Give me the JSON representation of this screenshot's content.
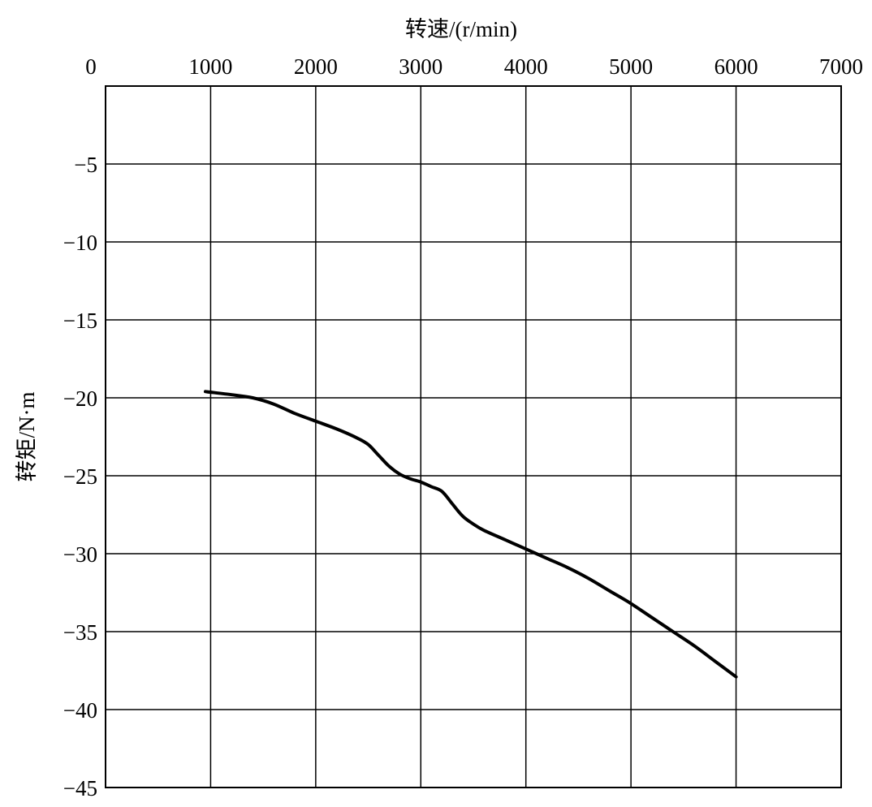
{
  "chart_data": {
    "type": "line",
    "title": "",
    "xlabel": "转速/(r/min)",
    "ylabel": "转矩/N·m",
    "x_axis_position": "top",
    "xlim": [
      0,
      7000
    ],
    "ylim": [
      -45,
      0
    ],
    "x_ticks": [
      0,
      1000,
      2000,
      3000,
      4000,
      5000,
      6000,
      7000
    ],
    "y_ticks": [
      -5,
      -10,
      -15,
      -20,
      -25,
      -30,
      -35,
      -40,
      -45
    ],
    "x_tick_labels": [
      "0",
      "1000",
      "2000",
      "3000",
      "4000",
      "5000",
      "6000",
      "7000"
    ],
    "y_tick_labels": [
      "−5",
      "−10",
      "−15",
      "−20",
      "−25",
      "−30",
      "−35",
      "−40",
      "−45"
    ],
    "grid": true,
    "line_color": "#000000",
    "series": [
      {
        "x": [
          950,
          1200,
          1400,
          1600,
          1800,
          2000,
          2200,
          2400,
          2500,
          2600,
          2700,
          2800,
          2900,
          3000,
          3100,
          3200,
          3300,
          3400,
          3500,
          3600,
          3800,
          4000,
          4200,
          4400,
          4600,
          4800,
          5000,
          5200,
          5400,
          5600,
          5800,
          6000
        ],
        "y": [
          -19.6,
          -19.8,
          -20.0,
          -20.4,
          -21.0,
          -21.5,
          -22.0,
          -22.6,
          -23.0,
          -23.7,
          -24.4,
          -24.9,
          -25.2,
          -25.4,
          -25.7,
          -26.0,
          -26.8,
          -27.6,
          -28.1,
          -28.5,
          -29.1,
          -29.7,
          -30.3,
          -30.9,
          -31.6,
          -32.4,
          -33.2,
          -34.1,
          -35.0,
          -35.9,
          -36.9,
          -37.9
        ]
      }
    ]
  }
}
